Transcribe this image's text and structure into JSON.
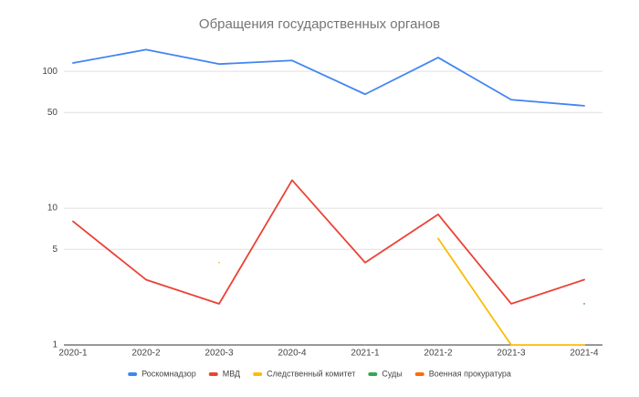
{
  "chart_data": {
    "type": "line",
    "title": "Обращения государственных органов",
    "categories": [
      "2020-1",
      "2020-2",
      "2020-3",
      "2020-4",
      "2021-1",
      "2021-2",
      "2021-3",
      "2021-4"
    ],
    "series": [
      {
        "name": "Роскомнадзор",
        "color": "#4285f4",
        "values": [
          115,
          144,
          113,
          120,
          68,
          126,
          62,
          56
        ]
      },
      {
        "name": "МВД",
        "color": "#ea4335",
        "values": [
          8,
          3,
          2,
          16,
          4,
          9,
          2,
          3
        ]
      },
      {
        "name": "Следственный комитет",
        "color": "#fbbc04",
        "values": [
          null,
          null,
          4,
          null,
          null,
          6,
          1,
          1
        ]
      },
      {
        "name": "Суды",
        "color": "#34a853",
        "values": [
          null,
          null,
          null,
          null,
          1,
          null,
          null,
          2
        ]
      },
      {
        "name": "Военная прокуратура",
        "color": "#ff6d01",
        "values": [
          null,
          null,
          null,
          null,
          null,
          null,
          null,
          null
        ]
      }
    ],
    "ylim": [
      1,
      200
    ],
    "yticks": [
      1,
      5,
      10,
      50,
      100
    ],
    "log_scale": true,
    "grid": true
  }
}
